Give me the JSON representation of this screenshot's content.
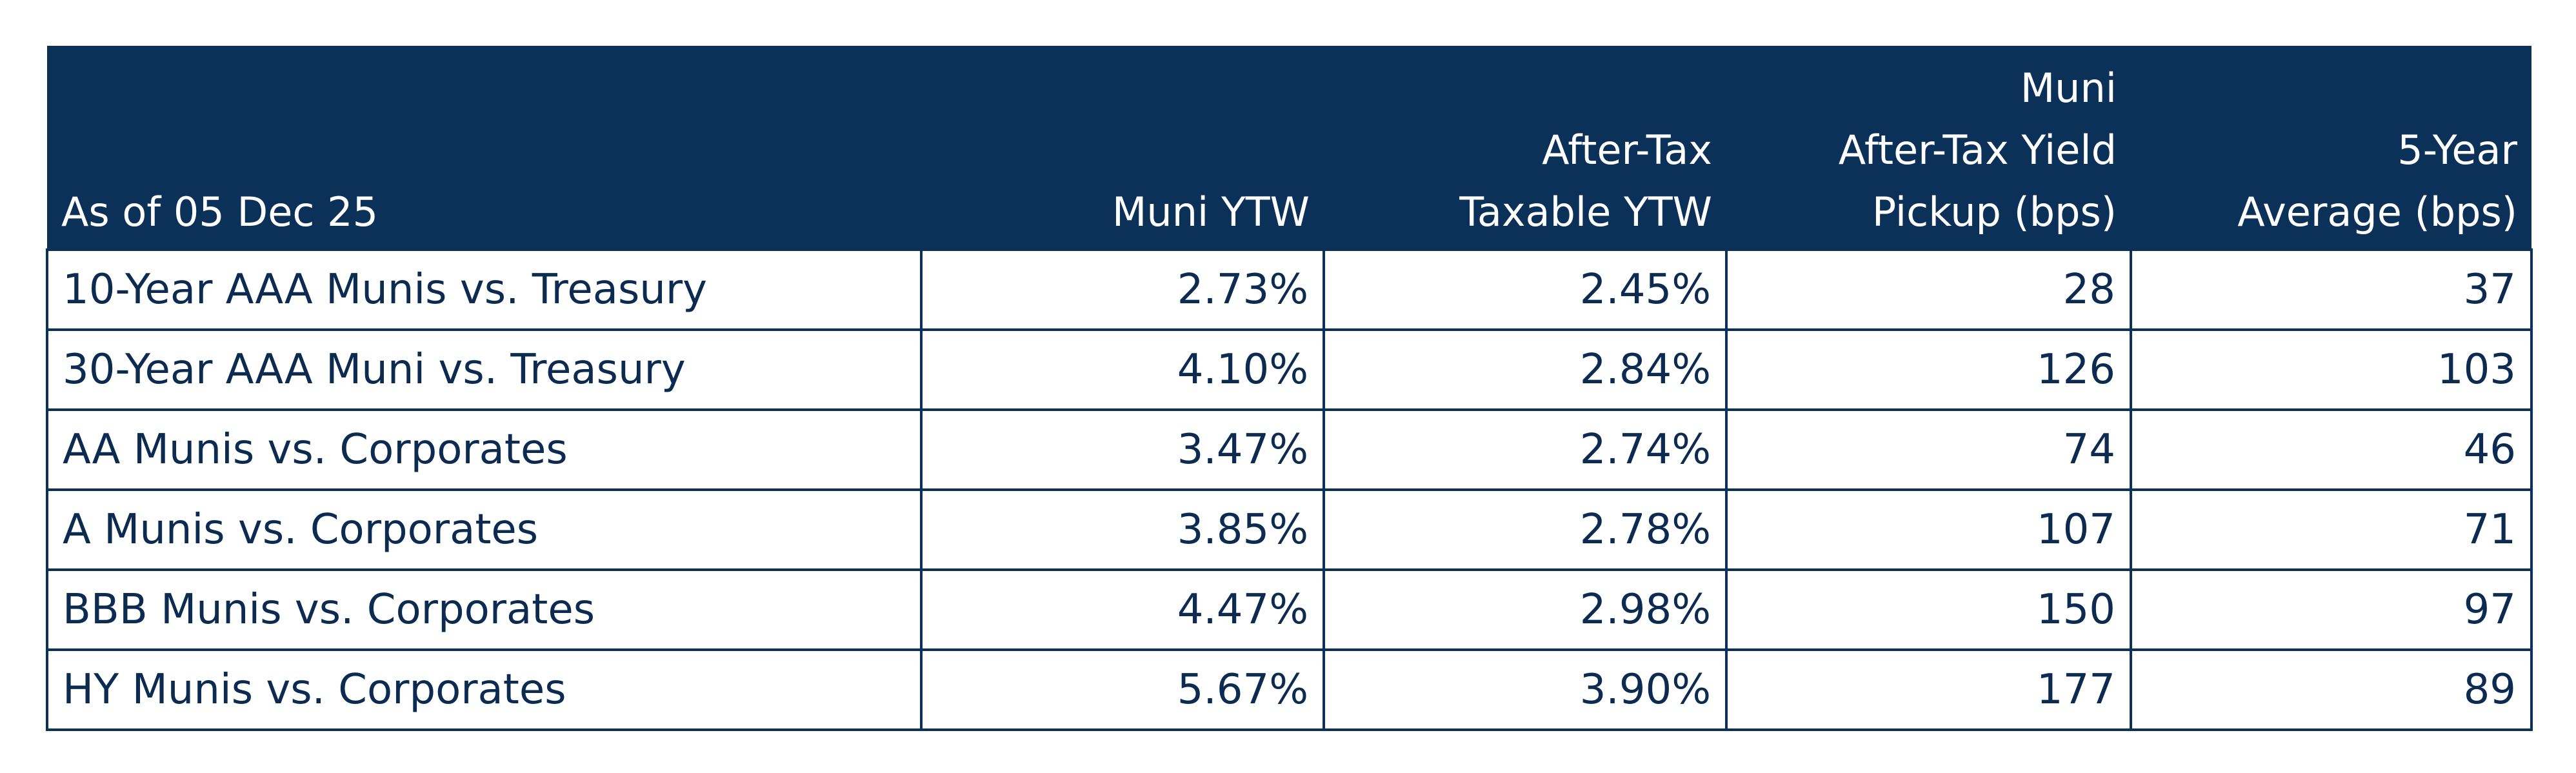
{
  "table": {
    "columns": [
      {
        "lines": [
          "As of 05 Dec 25"
        ]
      },
      {
        "lines": [
          "Muni YTW"
        ]
      },
      {
        "lines": [
          "After-Tax",
          "Taxable YTW"
        ]
      },
      {
        "lines": [
          "Muni",
          "After-Tax Yield",
          "Pickup (bps)"
        ]
      },
      {
        "lines": [
          "5-Year",
          "Average (bps)"
        ]
      }
    ],
    "rows": [
      [
        "10-Year AAA Munis vs. Treasury",
        "2.73%",
        "2.45%",
        "28",
        "37"
      ],
      [
        "30-Year AAA Muni vs. Treasury",
        "4.10%",
        "2.84%",
        "126",
        "103"
      ],
      [
        "AA Munis vs. Corporates",
        "3.47%",
        "2.74%",
        "74",
        "46"
      ],
      [
        "A Munis vs. Corporates",
        "3.85%",
        "2.78%",
        "107",
        "71"
      ],
      [
        "BBB Munis vs. Corporates",
        "4.47%",
        "2.98%",
        "150",
        "97"
      ],
      [
        "HY Munis vs. Corporates",
        "5.67%",
        "3.90%",
        "177",
        "89"
      ]
    ]
  }
}
